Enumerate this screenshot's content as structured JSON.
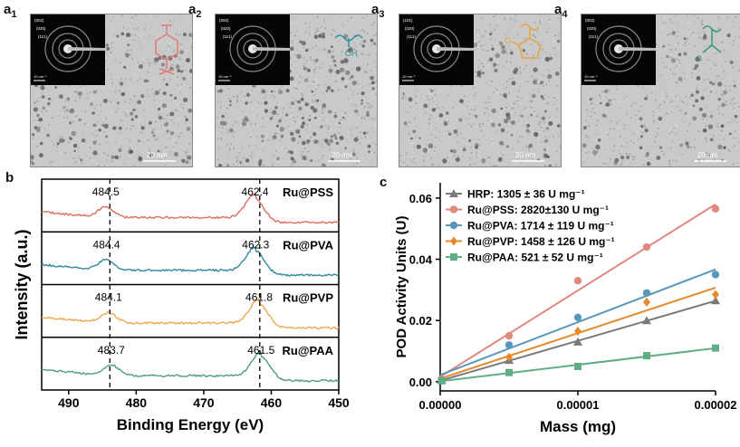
{
  "panels_a": [
    {
      "letter": "a",
      "sub": "1",
      "polymer": "PSS",
      "scalebar": "20 nm",
      "inset_scale": "10 nm⁻¹",
      "inset_rings": [
        "(002)",
        "(020)",
        "(111)"
      ],
      "icon_color": "#e07b74",
      "icon": "benzene-sulfonate-icon"
    },
    {
      "letter": "a",
      "sub": "2",
      "polymer": "PVA",
      "scalebar": "20 nm",
      "inset_scale": "10 nm⁻¹",
      "inset_rings": [
        "(002)",
        "(020)",
        "(111)"
      ],
      "icon_color": "#2a8fa0",
      "icon": "hydroxyl-chain-icon",
      "icon_text": "OH"
    },
    {
      "letter": "a",
      "sub": "3",
      "polymer": "PVP",
      "scalebar": "20 nm",
      "inset_scale": "10 nm⁻¹",
      "inset_rings": [
        "(101)",
        "(020)",
        "(111)"
      ],
      "icon_color": "#e8a33c",
      "icon": "pyrrolidone-ring-icon",
      "icon_text": "O"
    },
    {
      "letter": "a",
      "sub": "4",
      "polymer": "PAA",
      "scalebar": "20 nm",
      "inset_scale": "10 nm⁻¹",
      "inset_rings": [
        "(002)",
        "(020)",
        "(111)"
      ],
      "icon_color": "#3a9a78",
      "icon": "carboxyl-chain-icon",
      "icon_text": "O"
    }
  ],
  "panel_b": {
    "label": "b",
    "ylabel": "Intensity (a.u.)",
    "xlabel": "Binding Energy (eV)",
    "xticks": [
      "490",
      "480",
      "470",
      "460",
      "450"
    ],
    "xlim": [
      494,
      450
    ],
    "dashed_lines": [
      483.9,
      461.7
    ],
    "series": [
      {
        "name": "Ru@PSS",
        "color": "#d9725f",
        "peak1": "484.5",
        "peak2": "462.4"
      },
      {
        "name": "Ru@PVA",
        "color": "#2f8a99",
        "peak1": "484.4",
        "peak2": "462.3"
      },
      {
        "name": "Ru@PVP",
        "color": "#ecaa52",
        "peak1": "484.1",
        "peak2": "461.8"
      },
      {
        "name": "Ru@PAA",
        "color": "#4fa07a",
        "peak1": "483.7",
        "peak2": "461.5"
      }
    ]
  },
  "chart_data": {
    "type": "scatter",
    "label": "c",
    "title": "",
    "xlabel": "Mass (mg)",
    "ylabel": "POD Activity Units (U)",
    "xlim": [
      0,
      2e-05
    ],
    "ylim": [
      -0.003,
      0.065
    ],
    "xticks": [
      "0.00000",
      "0.00001",
      "0.00002"
    ],
    "yticks": [
      "0.00",
      "0.02",
      "0.04",
      "0.06"
    ],
    "x": [
      1e-07,
      5e-06,
      1e-05,
      1.5e-05,
      2e-05
    ],
    "series": [
      {
        "name": "HRP: 1305 ± 36 U mg⁻¹",
        "color": "#7a7a7a",
        "marker": "triangle",
        "values": [
          0.0005,
          0.007,
          0.013,
          0.02,
          0.0265
        ]
      },
      {
        "name": "Ru@PSS: 2820±130 U mg⁻¹",
        "color": "#df8a80",
        "marker": "circle",
        "values": [
          0.0008,
          0.015,
          0.033,
          0.044,
          0.0565
        ]
      },
      {
        "name": "Ru@PVA: 1714 ± 119 U mg⁻¹",
        "color": "#5b97b8",
        "marker": "circle",
        "values": [
          0.0005,
          0.012,
          0.021,
          0.029,
          0.035
        ]
      },
      {
        "name": "Ru@PVP: 1458 ± 126 U mg⁻¹",
        "color": "#e8892c",
        "marker": "diamond",
        "values": [
          0.0005,
          0.008,
          0.0165,
          0.026,
          0.0285
        ]
      },
      {
        "name": "Ru@PAA: 521 ± 52 U mg⁻¹",
        "color": "#5fae86",
        "marker": "square",
        "values": [
          0.0003,
          0.003,
          0.005,
          0.0085,
          0.011
        ]
      }
    ]
  }
}
